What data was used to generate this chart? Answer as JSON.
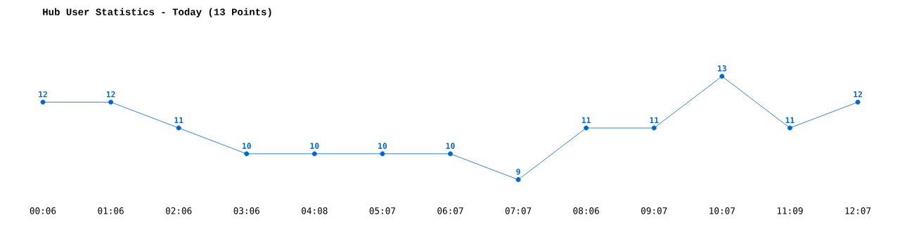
{
  "chart_data": {
    "type": "line",
    "title": "Hub User Statistics - Today (13 Points)",
    "categories": [
      "00:06",
      "01:06",
      "02:06",
      "03:06",
      "04:08",
      "05:07",
      "06:07",
      "07:07",
      "08:06",
      "09:07",
      "10:07",
      "11:09",
      "12:07"
    ],
    "values": [
      12,
      12,
      11,
      10,
      10,
      10,
      10,
      9,
      11,
      11,
      13,
      11,
      12
    ],
    "color": "#0066cc",
    "data_labels": true,
    "marker": "circle",
    "line_style": "solid"
  }
}
